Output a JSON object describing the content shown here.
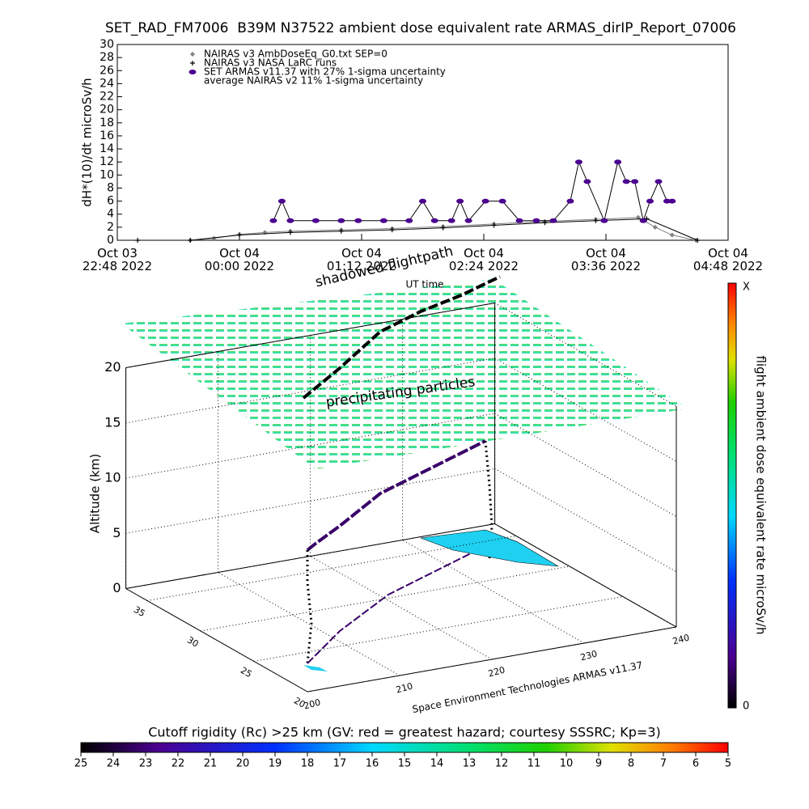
{
  "chart_data": [
    {
      "type": "timeseries",
      "title": "SET_RAD_FM7006  B39M N37522 ambient dose equivalent rate ARMAS_dirIP_Report_07006",
      "ylabel": "dH*(10)/dt microSv/h",
      "xlim": [
        "2022-10-03T22:48",
        "2022-10-04T04:48"
      ],
      "xticks": [
        {
          "value": "2022-10-03T22:48",
          "label": "Oct 03\n22:48 2022"
        },
        {
          "value": "2022-10-04T00:00",
          "label": "Oct 04\n00:00 2022"
        },
        {
          "value": "2022-10-04T01:12",
          "label": "Oct 04\n01:12 2022"
        },
        {
          "value": "2022-10-04T02:24",
          "label": "Oct 04\n02:24 2022"
        },
        {
          "value": "2022-10-04T03:36",
          "label": "Oct 04\n03:36 2022"
        },
        {
          "value": "2022-10-04T04:48",
          "label": "Oct 04\n04:48 2022"
        }
      ],
      "ylim": [
        0,
        30
      ],
      "yticks": [
        0,
        2,
        4,
        6,
        8,
        10,
        12,
        14,
        16,
        18,
        20,
        22,
        24,
        26,
        28,
        30
      ],
      "legend_note": "average NAIRAS v2 11% 1-sigma uncertainty",
      "series": [
        {
          "name": "NAIRAS v3 AmbDoseEq_G0.txt SEP=0",
          "color": "#808080",
          "marker": "diamond",
          "x": [
            "2022-10-03T23:31",
            "2022-10-03T23:45",
            "2022-10-04T00:00",
            "2022-10-04T00:15",
            "2022-10-04T00:30",
            "2022-10-04T01:00",
            "2022-10-04T01:30",
            "2022-10-04T02:00",
            "2022-10-04T02:30",
            "2022-10-04T03:00",
            "2022-10-04T03:30",
            "2022-10-04T03:55",
            "2022-10-04T04:05",
            "2022-10-04T04:15",
            "2022-10-04T04:29"
          ],
          "values": [
            0,
            0.3,
            0.9,
            1.2,
            1.4,
            1.6,
            1.8,
            2.1,
            2.5,
            2.9,
            3.2,
            3.5,
            2,
            0.8,
            0
          ]
        },
        {
          "name": "NAIRAS v3 NASA LaRC runs",
          "color": "#000000",
          "marker": "plus",
          "x": [
            "2022-10-03T23:00",
            "2022-10-03T23:31",
            "2022-10-04T00:00",
            "2022-10-04T00:30",
            "2022-10-04T01:00",
            "2022-10-04T01:30",
            "2022-10-04T02:00",
            "2022-10-04T02:30",
            "2022-10-04T03:00",
            "2022-10-04T03:30",
            "2022-10-04T04:00",
            "2022-10-04T04:30"
          ],
          "values": [
            0,
            0,
            0.8,
            1.2,
            1.4,
            1.6,
            1.9,
            2.3,
            2.7,
            3,
            3.3,
            0
          ]
        },
        {
          "name": "SET ARMAS v11.37 with 27% 1-sigma uncertainty",
          "color": "#4b0090",
          "marker": "dot",
          "x": [
            "2022-10-04T00:20",
            "2022-10-04T00:25",
            "2022-10-04T00:30",
            "2022-10-04T00:45",
            "2022-10-04T01:00",
            "2022-10-04T01:10",
            "2022-10-04T01:25",
            "2022-10-04T01:40",
            "2022-10-04T01:48",
            "2022-10-04T01:55",
            "2022-10-04T02:05",
            "2022-10-04T02:10",
            "2022-10-04T02:15",
            "2022-10-04T02:25",
            "2022-10-04T02:35",
            "2022-10-04T02:45",
            "2022-10-04T02:55",
            "2022-10-04T03:05",
            "2022-10-04T03:15",
            "2022-10-04T03:20",
            "2022-10-04T03:25",
            "2022-10-04T03:35",
            "2022-10-04T03:43",
            "2022-10-04T03:48",
            "2022-10-04T03:53",
            "2022-10-04T03:58",
            "2022-10-04T04:02",
            "2022-10-04T04:07",
            "2022-10-04T04:12",
            "2022-10-04T04:15"
          ],
          "values": [
            3,
            6,
            3,
            3,
            3,
            3,
            3,
            3,
            6,
            3,
            3,
            6,
            3,
            6,
            6,
            3,
            3,
            3,
            6,
            12,
            9,
            3,
            12,
            9,
            9,
            3,
            6,
            9,
            6,
            6
          ]
        }
      ]
    },
    {
      "type": "scatter3d",
      "zlabel": "Altitude (km)",
      "xlabel": "Space Environment Technologies ARMAS v11.37",
      "annotations": [
        "shadowed flightpath",
        "UT time",
        "precipitating particles"
      ],
      "xlim": [
        200,
        240
      ],
      "xticks": [
        200,
        210,
        220,
        230,
        240
      ],
      "ylim": [
        20,
        37
      ],
      "yticks": [
        20,
        25,
        30,
        35
      ],
      "zlim": [
        0,
        20
      ],
      "zticks": [
        0,
        5,
        10,
        15,
        20
      ]
    },
    {
      "type": "colorbar",
      "orientation": "vertical",
      "label": "flight ambient dose equivalent rate microSv/h",
      "top_label": "X",
      "bottom_label": "0"
    },
    {
      "type": "colorbar",
      "orientation": "horizontal",
      "title": "Cutoff rigidity (Rc) >25 km (GV: red = greatest hazard; courtesy SSSRC; Kp=3)",
      "lim": [
        25,
        5
      ],
      "ticks": [
        25,
        24,
        23,
        22,
        21,
        20,
        19,
        18,
        17,
        16,
        15,
        14,
        13,
        12,
        11,
        10,
        9,
        8,
        7,
        6,
        5
      ]
    }
  ]
}
